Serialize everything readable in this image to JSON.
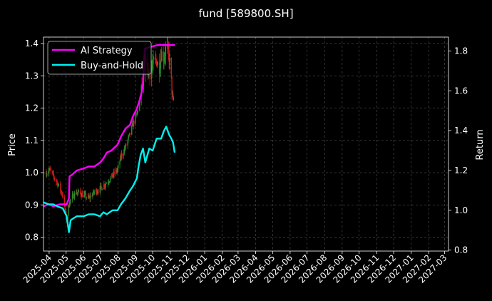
{
  "chart_data": {
    "type": "line",
    "title": "fund [589800.SH]",
    "xlabel": "",
    "ylabel_left": "Price",
    "ylabel_right": "Return",
    "x_ticks": [
      "2025-04",
      "2025-05",
      "2025-06",
      "2025-07",
      "2025-08",
      "2025-09",
      "2025-10",
      "2025-11",
      "2025-12",
      "2026-01",
      "2026-02",
      "2026-03",
      "2026-04",
      "2026-05",
      "2026-06",
      "2026-07",
      "2026-08",
      "2026-09",
      "2026-10",
      "2026-11",
      "2026-12",
      "2027-01",
      "2027-02",
      "2027-03"
    ],
    "xlim": [
      "2025-03-22",
      "2027-03-08"
    ],
    "ylim_left": [
      0.757,
      1.42
    ],
    "ylim_right": [
      0.795,
      1.87
    ],
    "y_ticks_left": [
      "0.8",
      "0.9",
      "1.0",
      "1.1",
      "1.2",
      "1.3",
      "1.4"
    ],
    "y_ticks_right": [
      "0.8",
      "1.0",
      "1.2",
      "1.4",
      "1.6",
      "1.8"
    ],
    "grid": true,
    "legend_position": "top-left",
    "background": "#000000",
    "colors": {
      "ai_strategy": "#ff00ff",
      "buy_and_hold": "#00f0f0",
      "candle_up": "#2e8b2e",
      "candle_down": "#cc1a1a",
      "grid": "#555555",
      "axis": "#ffffff"
    },
    "series": [
      {
        "name": "AI Strategy",
        "axis": "right",
        "x": [
          "2025-03-22",
          "2025-03-31",
          "2025-04-08",
          "2025-04-20",
          "2025-05-02",
          "2025-05-06",
          "2025-05-07",
          "2025-05-12",
          "2025-05-20",
          "2025-06-01",
          "2025-06-10",
          "2025-06-20",
          "2025-06-30",
          "2025-07-06",
          "2025-07-12",
          "2025-07-20",
          "2025-07-31",
          "2025-08-06",
          "2025-08-14",
          "2025-08-22",
          "2025-08-27",
          "2025-09-03",
          "2025-09-10",
          "2025-09-14",
          "2025-09-17",
          "2025-09-25",
          "2025-10-10",
          "2025-10-25",
          "2025-11-09"
        ],
        "values": [
          1.02,
          1.03,
          1.02,
          1.03,
          1.03,
          1.06,
          1.17,
          1.18,
          1.2,
          1.21,
          1.22,
          1.22,
          1.24,
          1.26,
          1.29,
          1.3,
          1.33,
          1.37,
          1.41,
          1.43,
          1.47,
          1.51,
          1.57,
          1.63,
          1.81,
          1.82,
          1.83,
          1.83,
          1.83
        ]
      },
      {
        "name": "Buy-and-Hold",
        "axis": "right",
        "x": [
          "2025-03-22",
          "2025-03-31",
          "2025-04-08",
          "2025-04-15",
          "2025-04-25",
          "2025-05-02",
          "2025-05-06",
          "2025-05-09",
          "2025-05-14",
          "2025-05-20",
          "2025-06-01",
          "2025-06-10",
          "2025-06-20",
          "2025-06-30",
          "2025-07-06",
          "2025-07-12",
          "2025-07-22",
          "2025-07-31",
          "2025-08-06",
          "2025-08-14",
          "2025-08-22",
          "2025-08-27",
          "2025-09-03",
          "2025-09-06",
          "2025-09-10",
          "2025-09-14",
          "2025-09-18",
          "2025-09-25",
          "2025-10-01",
          "2025-10-08",
          "2025-10-16",
          "2025-10-21",
          "2025-10-25",
          "2025-10-30",
          "2025-11-03",
          "2025-11-06",
          "2025-11-09"
        ],
        "values": [
          1.04,
          1.03,
          1.03,
          1.02,
          1.01,
          0.97,
          0.89,
          0.95,
          0.96,
          0.97,
          0.97,
          0.98,
          0.98,
          0.97,
          0.99,
          0.98,
          1.0,
          1.0,
          1.03,
          1.06,
          1.1,
          1.12,
          1.16,
          1.22,
          1.28,
          1.31,
          1.24,
          1.31,
          1.3,
          1.36,
          1.36,
          1.4,
          1.42,
          1.38,
          1.36,
          1.34,
          1.29
        ]
      }
    ],
    "candles_summary": {
      "axis": "left",
      "x_range": [
        "2025-03-27",
        "2025-11-09"
      ],
      "close_path_x": [
        "2025-03-27",
        "2025-04-01",
        "2025-04-08",
        "2025-04-15",
        "2025-04-20",
        "2025-04-25",
        "2025-05-01",
        "2025-05-07",
        "2025-05-14",
        "2025-05-20",
        "2025-06-01",
        "2025-06-10",
        "2025-06-20",
        "2025-06-30",
        "2025-07-06",
        "2025-07-12",
        "2025-07-22",
        "2025-07-31",
        "2025-08-06",
        "2025-08-14",
        "2025-08-22",
        "2025-08-27",
        "2025-09-03",
        "2025-09-10",
        "2025-09-14",
        "2025-09-17",
        "2025-09-25",
        "2025-10-01",
        "2025-10-08",
        "2025-10-12",
        "2025-10-16",
        "2025-10-21",
        "2025-10-25",
        "2025-10-30",
        "2025-11-03",
        "2025-11-06",
        "2025-11-09"
      ],
      "close_path": [
        1.0,
        1.01,
        0.99,
        0.97,
        0.95,
        0.93,
        0.86,
        0.91,
        0.93,
        0.94,
        0.93,
        0.92,
        0.94,
        0.95,
        0.96,
        0.97,
        0.99,
        1.01,
        1.05,
        1.08,
        1.12,
        1.15,
        1.18,
        1.24,
        1.3,
        1.34,
        1.31,
        1.33,
        1.35,
        1.32,
        1.37,
        1.36,
        1.39,
        1.36,
        1.28,
        1.22,
        1.25
      ]
    }
  }
}
